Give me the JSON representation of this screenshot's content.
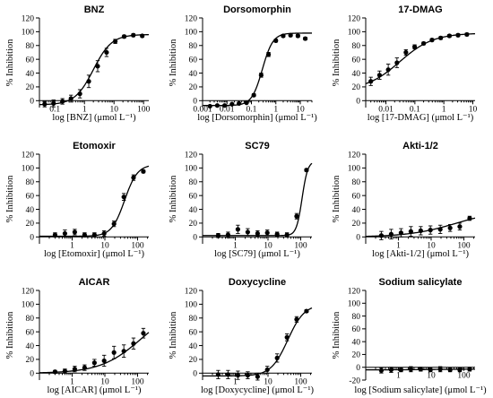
{
  "chart_data": [
    {
      "type": "scatter",
      "title": "BNZ",
      "xlabel": "log [BNZ] (μmol L⁻¹)",
      "ylabel": "% Inhibition",
      "x_scale": "log",
      "xlim": [
        0.03,
        150
      ],
      "ylim": [
        -10,
        120
      ],
      "yticks": [
        0,
        20,
        40,
        60,
        80,
        100,
        120
      ],
      "xtick_values": [
        0.1,
        1,
        10,
        100
      ],
      "xtick_labels": [
        "0.1",
        "1",
        "10",
        "100"
      ],
      "series": [
        {
          "x": [
            0.045,
            0.09,
            0.18,
            0.35,
            0.7,
            1.4,
            2.8,
            5.6,
            11,
            22,
            45,
            90
          ],
          "y": [
            -5,
            -4,
            -1,
            3,
            10,
            28,
            50,
            70,
            86,
            93,
            95,
            94
          ],
          "err": [
            4,
            5,
            4,
            5,
            6,
            9,
            8,
            6,
            3,
            2,
            2,
            2
          ]
        }
      ],
      "fit": {
        "bottom": -6,
        "top": 96,
        "ec50": 2.0,
        "hill": 1.4
      }
    },
    {
      "type": "scatter",
      "title": "Dorsomorphin",
      "xlabel": "log [Dorsomorphin] (μmol L⁻¹)",
      "ylabel": "% Inhibition",
      "x_scale": "log",
      "xlim": [
        0.001,
        30
      ],
      "ylim": [
        -10,
        120
      ],
      "yticks": [
        0,
        20,
        40,
        60,
        80,
        100,
        120
      ],
      "xtick_values": [
        0.001,
        0.01,
        0.1,
        1,
        10
      ],
      "xtick_labels": [
        "0.001",
        "0.01",
        "0.1",
        "1",
        "10"
      ],
      "series": [
        {
          "x": [
            0.002,
            0.004,
            0.008,
            0.016,
            0.031,
            0.063,
            0.125,
            0.25,
            0.5,
            1,
            2,
            4,
            8,
            16
          ],
          "y": [
            -8,
            -7,
            -7,
            -5,
            -4,
            -3,
            8,
            37,
            67,
            87,
            94,
            95,
            94,
            90
          ],
          "err": [
            1,
            1,
            1,
            1,
            1,
            1,
            2,
            3,
            3,
            2,
            2,
            2,
            2,
            2
          ]
        }
      ],
      "fit": {
        "bottom": -7,
        "top": 98,
        "ec50": 0.28,
        "hill": 2.0
      }
    },
    {
      "type": "scatter",
      "title": "17-DMAG",
      "xlabel": "log [17-DMAG] (μmol L⁻¹)",
      "ylabel": "% Inhibition",
      "x_scale": "log",
      "xlim": [
        0.002,
        12
      ],
      "ylim": [
        -10,
        120
      ],
      "yticks": [
        0,
        20,
        40,
        60,
        80,
        100,
        120
      ],
      "xtick_values": [
        0.01,
        0.1,
        1,
        10
      ],
      "xtick_labels": [
        "0.01",
        "0.1",
        "1",
        "10"
      ],
      "series": [
        {
          "x": [
            0.003,
            0.006,
            0.012,
            0.024,
            0.049,
            0.098,
            0.2,
            0.39,
            0.78,
            1.56,
            3.1,
            6.25
          ],
          "y": [
            28,
            37,
            45,
            55,
            70,
            78,
            83,
            88,
            91,
            94,
            95,
            96
          ],
          "err": [
            6,
            6,
            8,
            7,
            4,
            3,
            2,
            2,
            2,
            2,
            2,
            2
          ]
        }
      ],
      "fit": {
        "bottom": 15,
        "top": 98,
        "ec50": 0.03,
        "hill": 0.75
      }
    },
    {
      "type": "scatter",
      "title": "Etomoxir",
      "xlabel": "log [Etomoxir] (μmol L⁻¹)",
      "ylabel": "% Inhibition",
      "x_scale": "log",
      "xlim": [
        0.1,
        220
      ],
      "ylim": [
        -10,
        120
      ],
      "yticks": [
        0,
        20,
        40,
        60,
        80,
        100,
        120
      ],
      "xtick_values": [
        1,
        10,
        100
      ],
      "xtick_labels": [
        "1",
        "10",
        "100"
      ],
      "series": [
        {
          "x": [
            0.3,
            0.6,
            1.2,
            2.4,
            4.8,
            9.5,
            19,
            38,
            75,
            150
          ],
          "y": [
            3,
            5,
            7,
            3,
            3,
            5,
            19,
            58,
            86,
            95
          ],
          "err": [
            3,
            5,
            4,
            3,
            3,
            4,
            4,
            5,
            4,
            2
          ]
        }
      ],
      "fit": {
        "bottom": 1,
        "top": 105,
        "ec50": 40,
        "hill": 2.2
      }
    },
    {
      "type": "scatter",
      "title": "SC79",
      "xlabel": "log [SC79] (μmol L⁻¹)",
      "ylabel": "% Inhibition",
      "x_scale": "log",
      "xlim": [
        0.1,
        220
      ],
      "ylim": [
        -10,
        120
      ],
      "yticks": [
        0,
        20,
        40,
        60,
        80,
        100,
        120
      ],
      "xtick_values": [
        1,
        10,
        100
      ],
      "xtick_labels": [
        "1",
        "10",
        "100"
      ],
      "series": [
        {
          "x": [
            0.3,
            0.6,
            1.2,
            2.4,
            4.8,
            9.5,
            19,
            38,
            75,
            150
          ],
          "y": [
            2,
            3,
            11,
            7,
            5,
            6,
            4,
            3,
            30,
            97
          ],
          "err": [
            3,
            4,
            6,
            5,
            4,
            4,
            3,
            3,
            4,
            2
          ]
        }
      ],
      "fit": {
        "bottom": 2,
        "top": 110,
        "ec50": 110,
        "hill": 5.0
      }
    },
    {
      "type": "scatter",
      "title": "Akti-1/2",
      "xlabel": "log [Akti-1/2] (μmol L⁻¹)",
      "ylabel": "% Inhibition",
      "x_scale": "log",
      "xlim": [
        0.1,
        220
      ],
      "ylim": [
        -10,
        120
      ],
      "yticks": [
        0,
        20,
        40,
        60,
        80,
        100,
        120
      ],
      "xtick_values": [
        1,
        10,
        100
      ],
      "xtick_labels": [
        "1",
        "10",
        "100"
      ],
      "series": [
        {
          "x": [
            0.3,
            0.6,
            1.2,
            2.4,
            4.8,
            9.5,
            19,
            38,
            75,
            150
          ],
          "y": [
            2,
            4,
            6,
            8,
            9,
            10,
            11,
            13,
            15,
            27
          ],
          "err": [
            6,
            7,
            6,
            7,
            6,
            6,
            6,
            5,
            5,
            3
          ]
        }
      ],
      "fit": {
        "bottom": 0,
        "top": 40,
        "ec50": 60,
        "hill": 0.6
      }
    },
    {
      "type": "scatter",
      "title": "AICAR",
      "xlabel": "log [AICAR] (μmol L⁻¹)",
      "ylabel": "% Inhibition",
      "x_scale": "log",
      "xlim": [
        0.1,
        220
      ],
      "ylim": [
        -10,
        120
      ],
      "yticks": [
        0,
        20,
        40,
        60,
        80,
        100,
        120
      ],
      "xtick_values": [
        1,
        10,
        100
      ],
      "xtick_labels": [
        "1",
        "10",
        "100"
      ],
      "series": [
        {
          "x": [
            0.3,
            0.6,
            1.2,
            2.4,
            4.8,
            9.5,
            19,
            38,
            75,
            150
          ],
          "y": [
            2,
            3,
            6,
            8,
            15,
            18,
            30,
            32,
            43,
            58
          ],
          "err": [
            2,
            3,
            4,
            4,
            5,
            8,
            9,
            9,
            8,
            7
          ]
        }
      ],
      "fit": {
        "bottom": 0,
        "top": 100,
        "ec50": 130,
        "hill": 0.7
      }
    },
    {
      "type": "scatter",
      "title": "Doxycycline",
      "xlabel": "log [Doxycycline] (μmol L⁻¹)",
      "ylabel": "% Inhibition",
      "x_scale": "log",
      "xlim": [
        0.1,
        220
      ],
      "ylim": [
        -10,
        120
      ],
      "yticks": [
        0,
        20,
        40,
        60,
        80,
        100,
        120
      ],
      "xtick_values": [
        1,
        10,
        100
      ],
      "xtick_labels": [
        "1",
        "10",
        "100"
      ],
      "series": [
        {
          "x": [
            0.3,
            0.6,
            1.2,
            2.4,
            4.8,
            9.5,
            19,
            38,
            75,
            150
          ],
          "y": [
            -2,
            -2,
            -3,
            -3,
            -5,
            5,
            22,
            52,
            78,
            90
          ],
          "err": [
            6,
            6,
            6,
            5,
            5,
            5,
            6,
            5,
            4,
            2
          ]
        }
      ],
      "fit": {
        "bottom": -4,
        "top": 100,
        "ec50": 40,
        "hill": 1.7
      }
    },
    {
      "type": "scatter",
      "title": "Sodium salicylate",
      "xlabel": "log [Sodium salicylate] (μmol L⁻¹)",
      "ylabel": "% Inhibition",
      "x_scale": "log",
      "xlim": [
        0.1,
        220
      ],
      "ylim": [
        -20,
        120
      ],
      "yticks": [
        -20,
        0,
        20,
        40,
        60,
        80,
        100,
        120
      ],
      "xtick_values": [
        1,
        10,
        100
      ],
      "xtick_labels": [
        "1",
        "10",
        "100"
      ],
      "series": [
        {
          "x": [
            0.3,
            0.6,
            1.2,
            2.4,
            4.8,
            9.5,
            19,
            38,
            75,
            150
          ],
          "y": [
            -5,
            -4,
            -4,
            -3,
            -3,
            -4,
            -3,
            -4,
            -4,
            -3
          ],
          "err": [
            4,
            4,
            3,
            4,
            3,
            3,
            4,
            3,
            3,
            3
          ]
        }
      ],
      "fit": {
        "bottom": -4,
        "top": -3,
        "ec50": 10,
        "hill": 1.0
      }
    }
  ]
}
